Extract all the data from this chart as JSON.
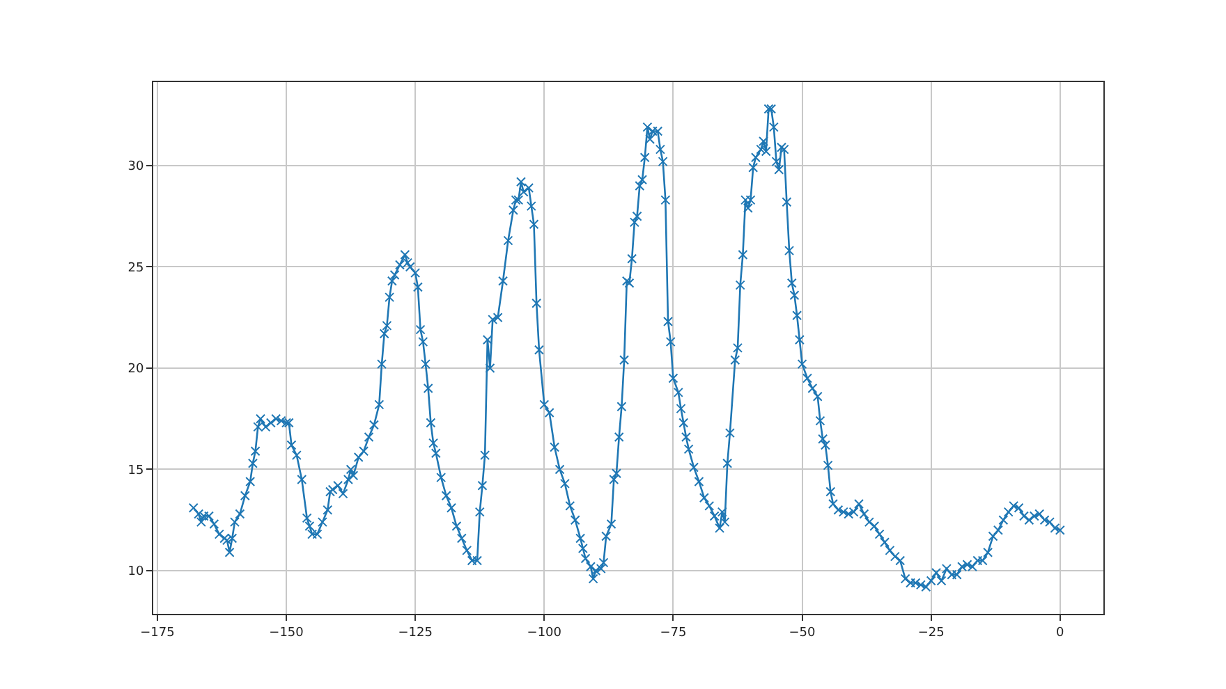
{
  "chart_data": {
    "type": "line",
    "marker": "cross",
    "grid": true,
    "xlim": [
      -175.8,
      8.4
    ],
    "ylim": [
      7.87,
      34.12
    ],
    "xticks": [
      {
        "value": -175,
        "label": "−175"
      },
      {
        "value": -150,
        "label": "−150"
      },
      {
        "value": -125,
        "label": "−125"
      },
      {
        "value": -100,
        "label": "−100"
      },
      {
        "value": -75,
        "label": "−75"
      },
      {
        "value": -50,
        "label": "−50"
      },
      {
        "value": -25,
        "label": "−25"
      },
      0
    ],
    "yticks": [
      10,
      15,
      20,
      25,
      30
    ],
    "series": [
      {
        "color": "#1f77b4",
        "x": [
          -168,
          -167,
          -166.5,
          -166,
          -165,
          -164,
          -163,
          -162,
          -161.5,
          -161,
          -160.5,
          -160,
          -159,
          -158,
          -157,
          -156.5,
          -156,
          -155.5,
          -155,
          -154,
          -153,
          -152,
          -151,
          -150,
          -149.5,
          -149,
          -148,
          -147,
          -146,
          -145.5,
          -145,
          -144,
          -143,
          -142,
          -141.5,
          -141,
          -140,
          -139,
          -138,
          -137.5,
          -137,
          -136,
          -135,
          -134,
          -133,
          -132,
          -131.5,
          -131,
          -130.5,
          -130,
          -129.5,
          -129,
          -128,
          -127,
          -126.5,
          -126,
          -125,
          -124.5,
          -124,
          -123.5,
          -123,
          -122.5,
          -122,
          -121.5,
          -121,
          -120,
          -119,
          -118,
          -117,
          -116,
          -115,
          -114,
          -113,
          -112.5,
          -112,
          -111.5,
          -111,
          -110.5,
          -110,
          -109,
          -108,
          -107,
          -106,
          -105.5,
          -105,
          -104.5,
          -104,
          -103,
          -102.5,
          -102,
          -101.5,
          -101,
          -100,
          -99,
          -98,
          -97,
          -96,
          -95,
          -94,
          -93,
          -92.5,
          -92,
          -91,
          -90.5,
          -90,
          -89,
          -88.5,
          -88,
          -87,
          -86.5,
          -86,
          -85.5,
          -85,
          -84.5,
          -84,
          -83.5,
          -83,
          -82.5,
          -82,
          -81.5,
          -81,
          -80.5,
          -80,
          -79.5,
          -79,
          -78,
          -77.5,
          -77,
          -76.5,
          -76,
          -75.5,
          -75,
          -74,
          -73.5,
          -73,
          -72.5,
          -72,
          -71,
          -70,
          -69,
          -68,
          -67,
          -66,
          -65.5,
          -65,
          -64.5,
          -64,
          -63,
          -62.5,
          -62,
          -61.5,
          -61,
          -60.5,
          -60,
          -59.5,
          -59,
          -58,
          -57.5,
          -57,
          -56.5,
          -56,
          -55.5,
          -55,
          -54.5,
          -54,
          -53.5,
          -53,
          -52.5,
          -52,
          -51.5,
          -51,
          -50.5,
          -50,
          -49,
          -48,
          -47,
          -46.5,
          -46,
          -45.5,
          -45,
          -44.5,
          -44,
          -43,
          -42,
          -41,
          -40,
          -39,
          -38,
          -37,
          -36,
          -35,
          -34,
          -33,
          -32,
          -31,
          -30,
          -29,
          -28,
          -27,
          -26,
          -25,
          -24,
          -23,
          -22,
          -21,
          -20,
          -19,
          -18,
          -17,
          -16,
          -15,
          -14,
          -13,
          -12,
          -11,
          -10,
          -9,
          -8,
          -7,
          -6,
          -5,
          -4,
          -3,
          -2,
          -1,
          0
        ],
        "values": [
          13.1,
          12.8,
          12.4,
          12.7,
          12.7,
          12.3,
          11.8,
          11.6,
          11.5,
          10.9,
          11.6,
          12.4,
          12.8,
          13.7,
          14.4,
          15.3,
          15.9,
          17.1,
          17.5,
          17.1,
          17.3,
          17.5,
          17.4,
          17.3,
          17.3,
          16.2,
          15.7,
          14.5,
          12.6,
          12.2,
          11.8,
          11.8,
          12.4,
          13.0,
          13.9,
          14.0,
          14.2,
          13.8,
          14.5,
          15.0,
          14.7,
          15.6,
          15.9,
          16.6,
          17.2,
          18.2,
          20.2,
          21.7,
          22.1,
          23.5,
          24.3,
          24.6,
          25.1,
          25.6,
          25.2,
          25.0,
          24.7,
          24.0,
          21.9,
          21.3,
          20.2,
          19.0,
          17.3,
          16.3,
          15.8,
          14.6,
          13.7,
          13.1,
          12.2,
          11.6,
          11.0,
          10.5,
          10.5,
          12.9,
          14.2,
          15.7,
          21.4,
          20.0,
          22.4,
          22.5,
          24.3,
          26.3,
          27.8,
          28.3,
          28.3,
          29.2,
          28.7,
          28.9,
          28.0,
          27.1,
          23.2,
          20.9,
          18.2,
          17.8,
          16.1,
          15.0,
          14.3,
          13.2,
          12.5,
          11.6,
          11.1,
          10.6,
          10.2,
          9.6,
          10.0,
          10.1,
          10.4,
          11.7,
          12.3,
          14.5,
          14.8,
          16.6,
          18.1,
          20.4,
          24.3,
          24.2,
          25.4,
          27.2,
          27.5,
          29.0,
          29.3,
          30.4,
          31.9,
          31.3,
          31.7,
          31.7,
          30.8,
          30.2,
          28.3,
          22.3,
          21.3,
          19.5,
          18.8,
          18.0,
          17.3,
          16.6,
          16.0,
          15.1,
          14.4,
          13.6,
          13.2,
          12.7,
          12.1,
          12.9,
          12.4,
          15.3,
          16.8,
          20.4,
          21.0,
          24.1,
          25.6,
          28.3,
          27.9,
          28.3,
          29.9,
          30.4,
          30.8,
          31.2,
          30.7,
          32.8,
          32.8,
          31.9,
          30.2,
          29.8,
          30.9,
          30.8,
          28.2,
          25.8,
          24.2,
          23.6,
          22.6,
          21.4,
          20.2,
          19.5,
          19.0,
          18.6,
          17.4,
          16.5,
          16.2,
          15.2,
          13.9,
          13.3,
          13.0,
          12.9,
          12.8,
          12.9,
          13.3,
          12.8,
          12.4,
          12.2,
          11.8,
          11.4,
          11.0,
          10.7,
          10.5,
          9.6,
          9.4,
          9.4,
          9.3,
          9.2,
          9.5,
          9.9,
          9.5,
          10.1,
          9.8,
          9.8,
          10.2,
          10.3,
          10.2,
          10.5,
          10.5,
          10.9,
          11.7,
          12.0,
          12.5,
          12.9,
          13.2,
          13.1,
          12.7,
          12.5,
          12.7,
          12.8,
          12.5,
          12.4,
          12.1,
          12.0
        ]
      }
    ]
  }
}
